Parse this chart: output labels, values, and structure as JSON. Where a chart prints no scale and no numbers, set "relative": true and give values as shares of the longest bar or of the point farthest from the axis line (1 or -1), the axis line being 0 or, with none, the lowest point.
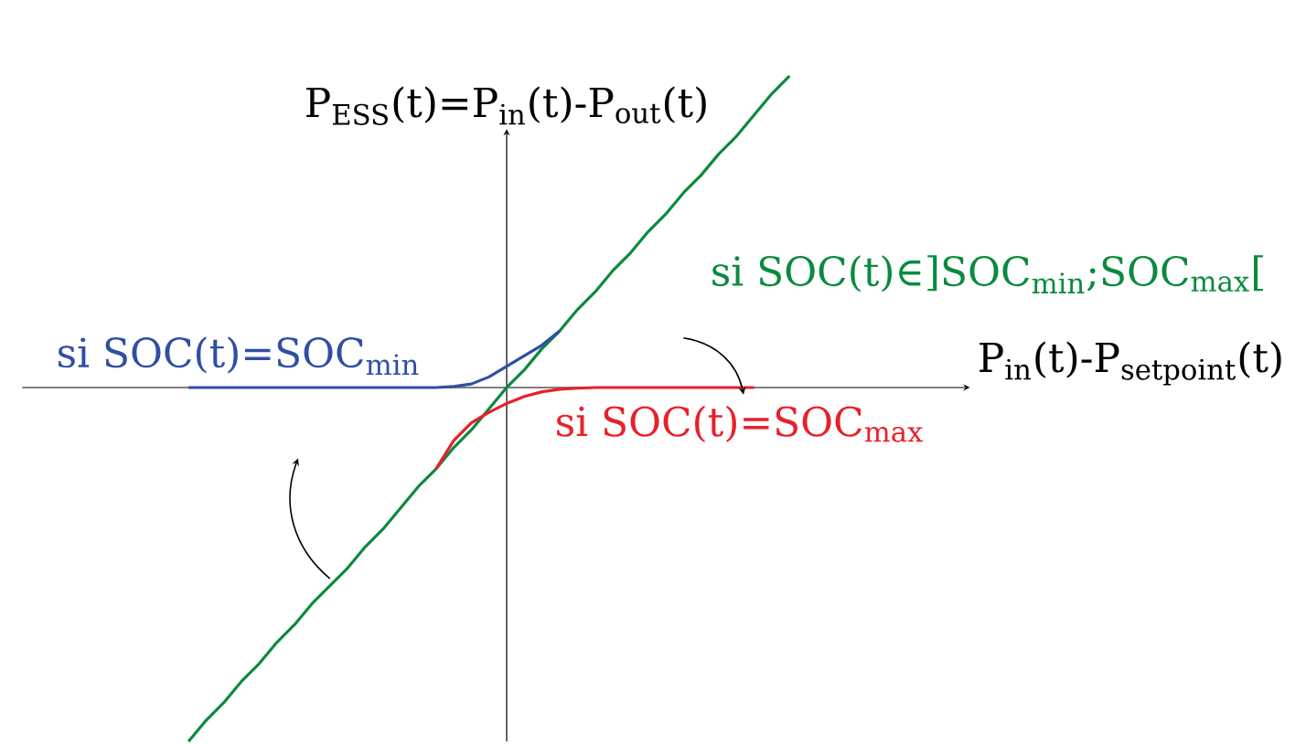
{
  "chart_data": {
    "type": "line",
    "relative": true,
    "xlabel": "P$_{in}$(t)-P$_{setpoint}$(t)",
    "ylabel": "P$_{ESS}$(t)=P$_{in}$(t)-P$_{out}$(t)",
    "categories": [
      null,
      null,
      null,
      null,
      null,
      null,
      null,
      null,
      null,
      null,
      null,
      null,
      null,
      null,
      null,
      null,
      null,
      null,
      null,
      null,
      null,
      null,
      null,
      null,
      null,
      null,
      null,
      null,
      null,
      null,
      null,
      null,
      null,
      null,
      null
    ],
    "series": [
      {
        "name": "si SOC(t)∈]SOC$_{min}$;SOC$_{max}$[",
        "color": "#0b8a3e",
        "values": [
          -1,
          -0.94,
          -0.89,
          -0.83,
          -0.78,
          -0.72,
          -0.67,
          -0.61,
          -0.56,
          -0.51,
          -0.45,
          -0.4,
          -0.34,
          -0.28,
          -0.23,
          -0.17,
          -0.12,
          -0.06,
          0,
          0.05,
          0.11,
          0.16,
          0.22,
          0.27,
          0.33,
          0.38,
          0.44,
          0.49,
          0.55,
          0.6,
          0.66,
          0.71,
          0.77,
          0.83,
          0.88
        ]
      },
      {
        "name": "si SOC(t)=SOC$_{min}$",
        "color": "#2f4fa3",
        "values": [
          0,
          0,
          0,
          0,
          0,
          0,
          0,
          0,
          0,
          0,
          0,
          0,
          0,
          0,
          0,
          0.003,
          0.01,
          0.03,
          0.06,
          0.09,
          0.12,
          0.16,
          null,
          null,
          null,
          null,
          null,
          null,
          null,
          null,
          null,
          null,
          null,
          null,
          null
        ]
      },
      {
        "name": "si SOC(t)=SOC$_{max}$",
        "color": "#e8202a",
        "values": [
          null,
          null,
          null,
          null,
          null,
          null,
          null,
          null,
          null,
          null,
          null,
          null,
          null,
          null,
          -0.23,
          -0.15,
          -0.1,
          -0.07,
          -0.045,
          -0.025,
          -0.012,
          -0.005,
          -0.002,
          0,
          0,
          0,
          0,
          0,
          0,
          0,
          0,
          0,
          0,
          null,
          null
        ]
      }
    ],
    "marker": "none",
    "line_style": "solid"
  }
}
